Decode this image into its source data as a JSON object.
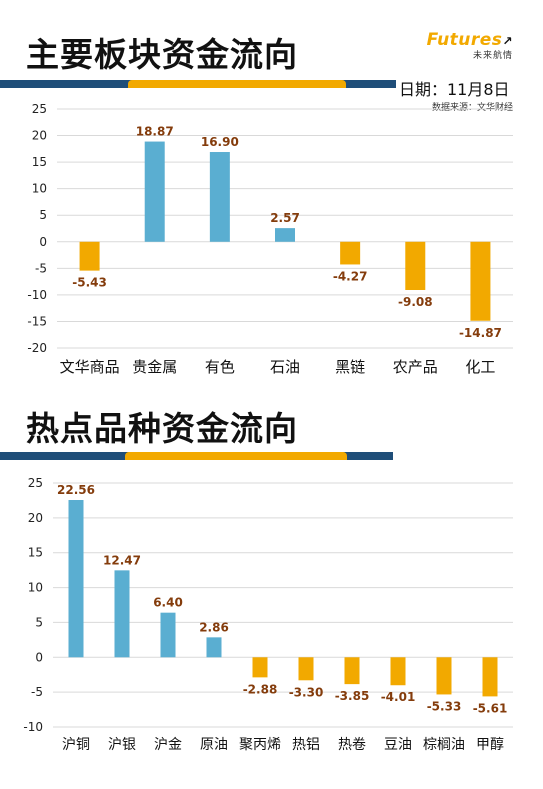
{
  "header": {
    "title1": "主要板块资金流向",
    "title2": "热点品种资金流向",
    "date": "日期：11月8日",
    "source": "数据来源：文华财经",
    "logo": {
      "brand": "Futures",
      "mark": "↗",
      "sub": "未来航情"
    }
  },
  "colors": {
    "positive": "#5aaed1",
    "negative": "#f2a900",
    "label": "#843c0c",
    "grid": "#d9d9d9",
    "navy": "#1f4e79",
    "gold": "#f2a900"
  },
  "chart_data": [
    {
      "type": "bar",
      "title": "",
      "xlabel": "",
      "ylabel": "",
      "ylim": [
        -20,
        25
      ],
      "yticks": [
        25,
        20,
        15,
        10,
        5,
        0,
        -5,
        -10,
        -15,
        -20
      ],
      "grid": true,
      "categories": [
        "文华商品",
        "贵金属",
        "有色",
        "石油",
        "黑链",
        "农产品",
        "化工"
      ],
      "values": [
        -5.43,
        18.87,
        16.9,
        2.57,
        -4.27,
        -9.08,
        -14.87
      ],
      "labels": [
        "-5.43",
        "18.87",
        "16.90",
        "2.57",
        "-4.27",
        "-9.08",
        "-14.87"
      ]
    },
    {
      "type": "bar",
      "title": "",
      "xlabel": "",
      "ylabel": "",
      "ylim": [
        -10,
        25
      ],
      "yticks": [
        25,
        20,
        15,
        10,
        5,
        0,
        -5,
        -10
      ],
      "grid": true,
      "categories": [
        "沪铜",
        "沪银",
        "沪金",
        "原油",
        "聚丙烯",
        "热铝",
        "热卷",
        "豆油",
        "棕榈油",
        "甲醇"
      ],
      "values": [
        22.56,
        12.47,
        6.4,
        2.86,
        -2.88,
        -3.3,
        -3.85,
        -4.01,
        -5.33,
        -5.61
      ],
      "labels": [
        "22.56",
        "12.47",
        "6.40",
        "2.86",
        "-2.88",
        "-3.30",
        "-3.85",
        "-4.01",
        "-5.33",
        "-5.61"
      ]
    }
  ]
}
